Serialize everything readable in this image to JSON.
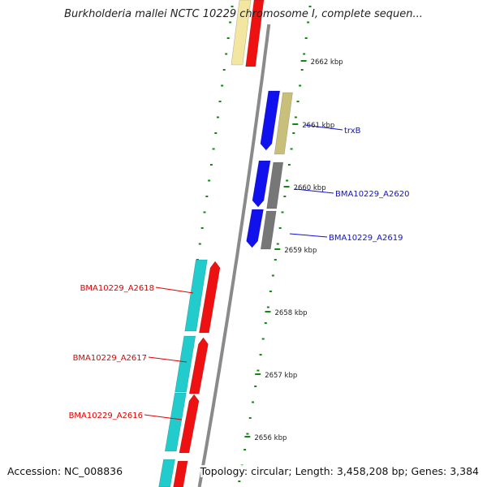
{
  "title": "Burkholderia mallei NCTC 10229 chromosome I, complete sequen...",
  "accession_label": "Accession: NC_008836",
  "topology_label": "Topology: circular; Length: 3,458,208 bp; Genes: 3,384",
  "ruler_labels": [
    "2662 kbp",
    "2661 kbp",
    "2660 kbp",
    "2659 kbp",
    "2658 kbp",
    "2657 kbp",
    "2656 kbp"
  ],
  "gene_labels": [
    {
      "text": "trxB",
      "color": "#1010d0",
      "side": "right"
    },
    {
      "text": "BMA10229_A2620",
      "color": "#1010d0",
      "side": "right"
    },
    {
      "text": "BMA10229_A2619",
      "color": "#1010d0",
      "side": "right"
    },
    {
      "text": "BMA10229_A2618",
      "color": "#e00000",
      "side": "left"
    },
    {
      "text": "BMA10229_A2617",
      "color": "#e00000",
      "side": "left"
    },
    {
      "text": "BMA10229_A2616",
      "color": "#e00000",
      "side": "left"
    }
  ],
  "colors": {
    "backbone": "#8a8a8a",
    "ticks": "#118811",
    "cds_forward": "#ee1111",
    "cds_reverse": "#1111ee",
    "gene_forward": "#22cccc",
    "gene_reverse_grey": "#777777",
    "gene_reverse_khaki": "#c8c07a",
    "gene_pale_yellow": "#f2e6a0"
  }
}
